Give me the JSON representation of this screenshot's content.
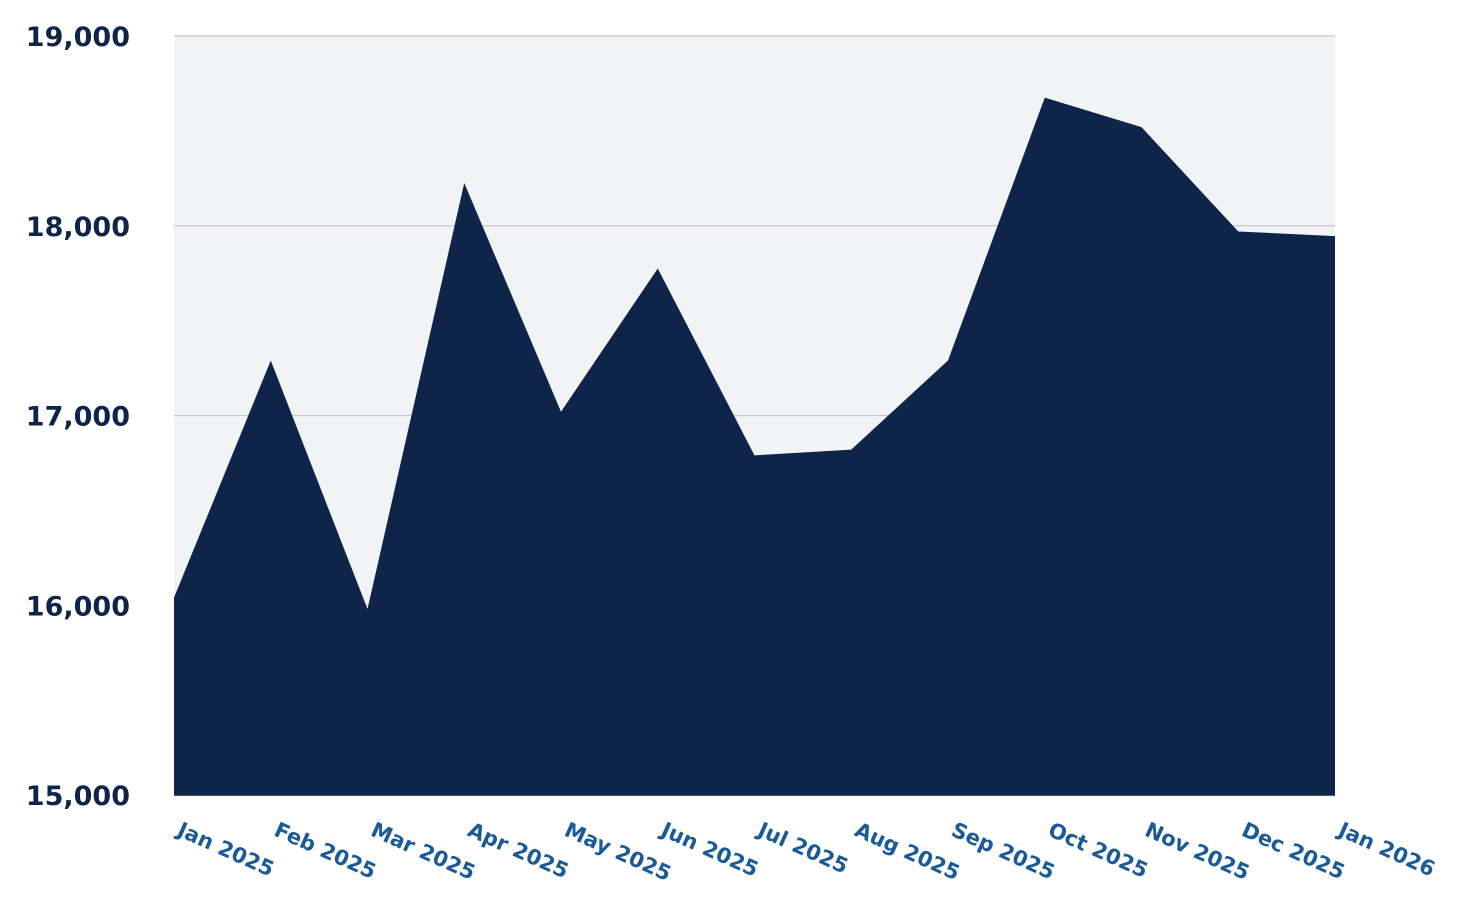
{
  "chart_data": {
    "type": "area",
    "title": "",
    "xlabel": "",
    "ylabel": "",
    "categories": [
      "Jan 2025",
      "Feb 2025",
      "Mar 2025",
      "Apr 2025",
      "May 2025",
      "Jun 2025",
      "Jul 2025",
      "Aug 2025",
      "Sep 2025",
      "Oct 2025",
      "Nov 2025",
      "Dec 2025",
      "Jan 2026"
    ],
    "values": [
      16040,
      17290,
      15980,
      18225,
      17020,
      17775,
      16790,
      16820,
      17290,
      18675,
      18520,
      17970,
      17945
    ],
    "ylim": [
      15000,
      19000
    ],
    "yticks": [
      15000,
      16000,
      17000,
      18000,
      19000
    ],
    "ytick_labels": [
      "15,000",
      "16,000",
      "17,000",
      "18,000",
      "19,000"
    ],
    "grid": "horizontal",
    "legend": "none",
    "colors": {
      "fill": "#0f2449",
      "plot_background": "#f2f3f5",
      "grid": "#c6c7cc",
      "ytick_text": "#0f2449",
      "xtick_text": "#1a5a96"
    }
  }
}
